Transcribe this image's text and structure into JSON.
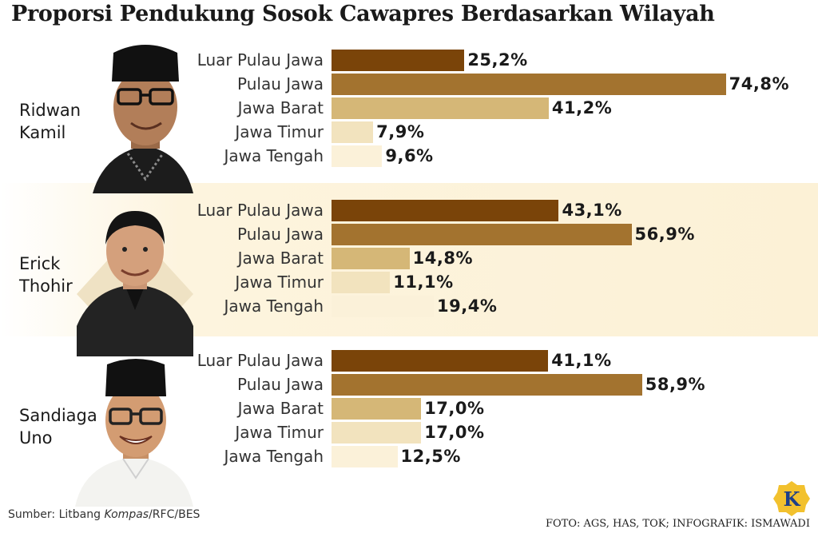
{
  "title": "Proporsi Pendukung Sosok Cawapres Berdasarkan Wilayah",
  "source_prefix": "Sumber: Litbang ",
  "source_italic": "Kompas",
  "source_suffix": "/RFC/BES",
  "credit": "FOTO: AGS, HAS, TOK; INFOGRAFIK: ISMAWADI",
  "logo_letter": "K",
  "colors": {
    "Luar Pulau Jawa": "#7a4409",
    "Pulau Jawa": "#a3732f",
    "Jawa Barat": "#d5b777",
    "Jawa Timur": "#f2e3be",
    "Jawa Tengah": "#fbf1d9",
    "band": "#fcf1d6",
    "logo": "#f2c12e"
  },
  "chart_data": {
    "type": "bar",
    "orientation": "horizontal",
    "title": "Proporsi Pendukung Sosok Cawapres Berdasarkan Wilayah",
    "categories": [
      "Luar Pulau Jawa",
      "Pulau Jawa",
      "Jawa Barat",
      "Jawa Timur",
      "Jawa Tengah"
    ],
    "xlim": [
      0,
      100
    ],
    "unit": "%",
    "groups": [
      {
        "name": "Ridwan\nKamil",
        "values": [
          25.2,
          74.8,
          41.2,
          7.9,
          9.6
        ],
        "labels": [
          "25,2%",
          "74,8%",
          "41,2%",
          "7,9%",
          "9,6%"
        ]
      },
      {
        "name": "Erick\nThohir",
        "values": [
          43.1,
          56.9,
          14.8,
          11.1,
          19.4
        ],
        "labels": [
          "43,1%",
          "56,9%",
          "14,8%",
          "11,1%",
          "19,4%"
        ]
      },
      {
        "name": "Sandiaga\nUno",
        "values": [
          41.1,
          58.9,
          17.0,
          17.0,
          12.5
        ],
        "labels": [
          "41,1%",
          "58,9%",
          "17,0%",
          "17,0%",
          "12,5%"
        ]
      }
    ]
  }
}
